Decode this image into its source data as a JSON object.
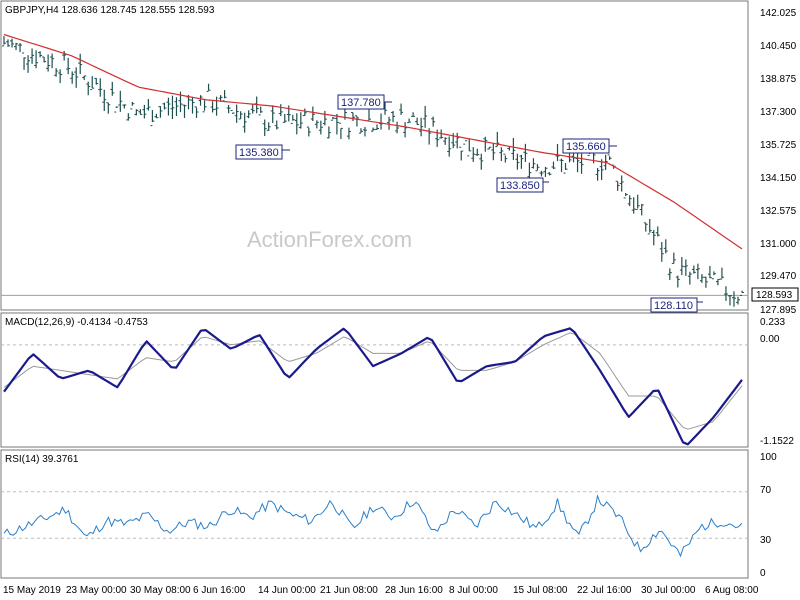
{
  "watermark": "ActionForex.com",
  "price_panel": {
    "header": "GBPJPY,H4  128.636 128.745 128.555 128.593",
    "last_price_label": "128.593",
    "y_ticks": [
      "142.025",
      "140.450",
      "138.875",
      "137.300",
      "135.725",
      "134.150",
      "132.575",
      "131.000",
      "129.470",
      "127.895"
    ]
  },
  "macd_panel": {
    "header": "MACD(12,26,9) -0.4134 -0.4753",
    "y_ticks": [
      "0.233",
      "0.00",
      "-1.1522"
    ]
  },
  "rsi_panel": {
    "header": "RSI(14) 39.3761",
    "y_ticks": [
      "100",
      "70",
      "30",
      "0"
    ]
  },
  "x_axis_labels": [
    "15 May 2019",
    "23 May 00:00",
    "30 May 08:00",
    "6 Jun 16:00",
    "14 Jun 00:00",
    "21 Jun 08:00",
    "28 Jun 16:00",
    "8 Jul 00:00",
    "15 Jul 08:00",
    "22 Jul 16:00",
    "30 Jul 00:00",
    "6 Aug 08:00"
  ],
  "annotations": [
    "137.780",
    "135.380",
    "135.660",
    "133.850",
    "128.110"
  ],
  "colors": {
    "bars": "#1f4e4e",
    "ma": "#d32f2f",
    "macd": "#1a1a8c",
    "signal": "#999999",
    "rsi": "#2a7fc9",
    "grid": "#bbbbbb"
  },
  "chart_data": [
    {
      "type": "ohlc",
      "title": "GBPJPY,H4",
      "ylim": [
        127.895,
        142.025
      ],
      "x": [
        "15 May 2019",
        "23 May 00:00",
        "30 May 08:00",
        "6 Jun 16:00",
        "14 Jun 00:00",
        "21 Jun 08:00",
        "28 Jun 16:00",
        "8 Jul 00:00",
        "15 Jul 08:00",
        "22 Jul 16:00",
        "30 Jul 00:00",
        "6 Aug 08:00"
      ],
      "series": [
        {
          "name": "GBPJPY",
          "values": [
            140.6,
            139.4,
            137.2,
            137.9,
            136.8,
            136.9,
            137.0,
            135.6,
            134.8,
            135.0,
            129.8,
            128.6
          ]
        },
        {
          "name": "",
          "values": [
            141.0,
            140.0,
            138.5,
            137.9,
            137.6,
            137.1,
            136.6,
            136.0,
            135.4,
            134.9,
            133.0,
            130.8
          ]
        }
      ],
      "annotations": [
        {
          "label": "137.780",
          "value": 137.78
        },
        {
          "label": "135.380",
          "value": 135.38
        },
        {
          "label": "135.660",
          "value": 135.66
        },
        {
          "label": "133.850",
          "value": 133.85
        },
        {
          "label": "128.110",
          "value": 128.11
        }
      ],
      "last_value": 128.593
    },
    {
      "type": "line",
      "title": "MACD(12,26,9)",
      "ylim": [
        -1.1522,
        0.233
      ],
      "series": [
        {
          "name": "",
          "values": [
            -0.55,
            -0.1,
            -0.4,
            -0.3,
            -0.5,
            0.05,
            -0.3,
            0.2,
            -0.05,
            0.12,
            -0.4,
            -0.05,
            0.2,
            -0.25,
            -0.1,
            0.1,
            -0.45,
            -0.25,
            -0.2,
            0.1,
            0.2,
            -0.3,
            -0.85,
            -0.5,
            -1.2,
            -0.85,
            -0.41
          ]
        },
        {
          "name": "",
          "values": [
            -0.5,
            -0.25,
            -0.3,
            -0.35,
            -0.4,
            -0.15,
            -0.2,
            0.1,
            0.0,
            0.05,
            -0.2,
            -0.1,
            0.1,
            -0.1,
            -0.1,
            0.05,
            -0.3,
            -0.3,
            -0.2,
            0.0,
            0.15,
            -0.1,
            -0.6,
            -0.6,
            -1.0,
            -0.9,
            -0.48
          ]
        }
      ],
      "last_values": [
        -0.4134,
        -0.4753
      ]
    },
    {
      "type": "line",
      "title": "RSI(14)",
      "ylim": [
        0,
        100
      ],
      "levels": [
        30,
        70
      ],
      "series": [
        {
          "name": "",
          "values": [
            33,
            40,
            47,
            55,
            30,
            45,
            42,
            50,
            36,
            44,
            40,
            55,
            48,
            60,
            50,
            45,
            62,
            38,
            57,
            48,
            63,
            34,
            55,
            40,
            62,
            50,
            38,
            60,
            30,
            64,
            48,
            20,
            38,
            15,
            40,
            45,
            39.4
          ]
        }
      ],
      "last_value": 39.3761
    }
  ]
}
